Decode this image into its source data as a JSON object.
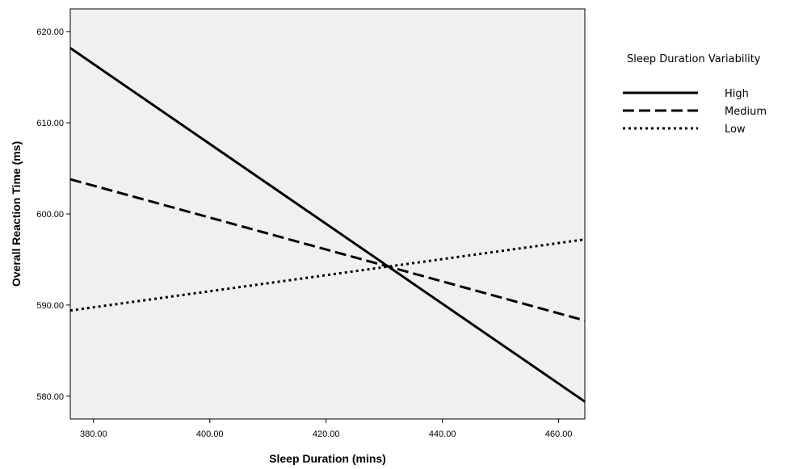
{
  "chart_data": {
    "type": "line",
    "title": "",
    "xlabel": "Sleep Duration (mins)",
    "ylabel": "Overall Reaction Time (ms)",
    "xlim": [
      376,
      464.5
    ],
    "ylim": [
      577.5,
      622.5
    ],
    "xticks": [
      380,
      400,
      420,
      440,
      460
    ],
    "xtick_labels": [
      "380.00",
      "400.00",
      "420.00",
      "440.00",
      "460.00"
    ],
    "yticks": [
      580,
      590,
      600,
      610,
      620
    ],
    "ytick_labels": [
      "580.00",
      "590.00",
      "600.00",
      "610.00",
      "620.00"
    ],
    "grid": false,
    "plot_background": "#f0f0f0",
    "legend": {
      "title": "Sleep Duration Variability",
      "placement": "right"
    },
    "series": [
      {
        "name": "High",
        "style": "solid",
        "color": "#000000",
        "x": [
          376,
          464.5
        ],
        "y": [
          618.2,
          579.4
        ]
      },
      {
        "name": "Medium",
        "style": "dashed",
        "color": "#000000",
        "x": [
          376,
          464.5
        ],
        "y": [
          603.8,
          588.3
        ]
      },
      {
        "name": "Low",
        "style": "dotted",
        "color": "#000000",
        "x": [
          376,
          464.5
        ],
        "y": [
          589.4,
          597.2
        ]
      }
    ]
  }
}
